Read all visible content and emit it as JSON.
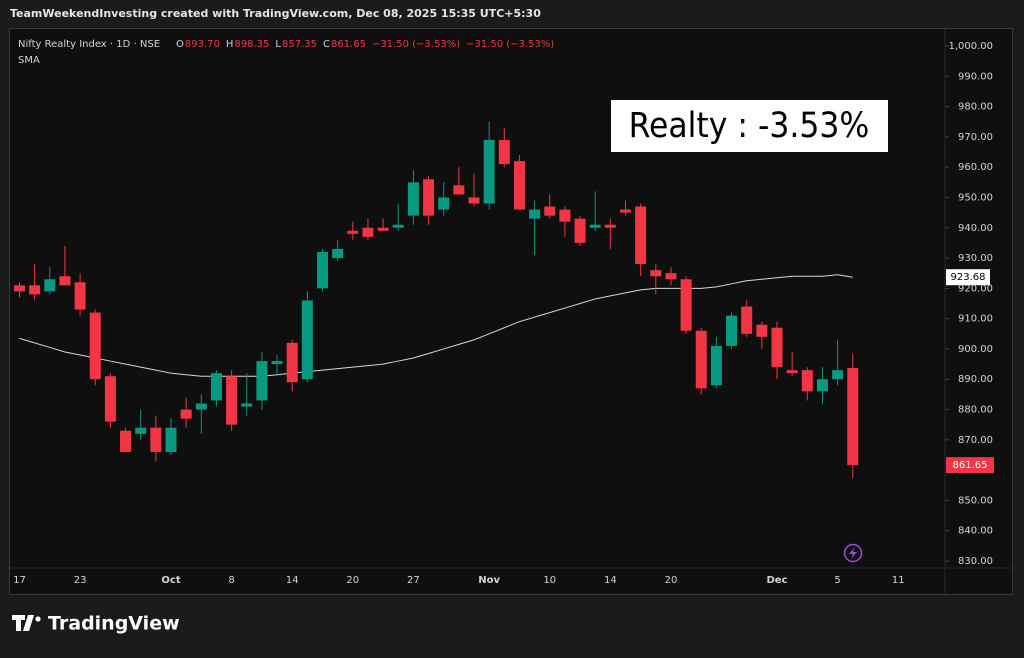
{
  "header": {
    "text": "TeamWeekendInvesting created with TradingView.com, Dec 08, 2025 15:35 UTC+5:30"
  },
  "brand": "TradingView",
  "chart_data": {
    "type": "candlestick",
    "symbol": "Nifty Realty Index · 1D · NSE",
    "ohlc_legend": [
      {
        "label": "O",
        "value": "893.70"
      },
      {
        "label": "H",
        "value": "898.35"
      },
      {
        "label": "L",
        "value": "857.35"
      },
      {
        "label": "C",
        "value": "861.65"
      }
    ],
    "change_texts": [
      "−31.50 (−3.53%)",
      "−31.50 (−3.53%)"
    ],
    "indicator": "SMA",
    "annotation": "Realty : -3.53%",
    "up_color": "#089981",
    "down_color": "#f23645",
    "sma_color": "#d8d8d8",
    "categories": [
      "17",
      null,
      null,
      null,
      "23",
      null,
      null,
      null,
      null,
      null,
      "Oct",
      null,
      null,
      null,
      "8",
      null,
      null,
      null,
      "14",
      null,
      null,
      null,
      "20",
      null,
      null,
      null,
      "27",
      null,
      null,
      null,
      null,
      "Nov",
      null,
      null,
      null,
      "10",
      null,
      null,
      null,
      "14",
      null,
      null,
      null,
      "20",
      null,
      null,
      null,
      null,
      null,
      null,
      "Dec",
      null,
      null,
      null,
      "5",
      null,
      null,
      null,
      "11"
    ],
    "open": [
      921,
      921,
      919,
      924,
      922,
      912,
      891,
      873,
      872,
      874,
      866,
      880,
      880,
      883,
      891,
      881,
      883,
      895,
      902,
      890,
      920,
      930,
      939,
      940,
      940,
      940,
      944,
      956,
      946,
      954,
      950,
      948,
      969,
      962,
      943,
      947,
      946,
      943,
      940,
      941,
      946,
      947,
      926,
      925,
      923,
      906,
      888,
      901,
      914,
      908,
      907,
      893,
      893,
      886,
      890,
      893.7,
      null,
      null,
      null
    ],
    "high": [
      922,
      928,
      927,
      934,
      925,
      913,
      892,
      874,
      880,
      878,
      877,
      884,
      885,
      893,
      893,
      892,
      899,
      898,
      903,
      919,
      933,
      936,
      942,
      943,
      943,
      948,
      959,
      957,
      955,
      960,
      958,
      975,
      973,
      964,
      949,
      951,
      947,
      944,
      952,
      943,
      949,
      948,
      928,
      927,
      924,
      907,
      904,
      912,
      916,
      909,
      909,
      899,
      894,
      894,
      903,
      898.35,
      null,
      null,
      null
    ],
    "low": [
      917,
      916,
      918,
      921,
      911,
      888,
      874,
      866,
      870,
      863,
      865,
      874,
      872,
      881,
      873,
      878,
      880,
      891,
      886,
      889,
      919,
      929,
      936,
      936,
      939,
      939,
      941,
      941,
      944,
      951,
      947,
      946,
      960,
      946,
      931,
      943,
      937,
      934,
      939,
      933,
      944,
      924,
      918,
      921,
      905,
      885,
      887,
      900,
      904,
      900,
      890,
      891,
      883,
      882,
      888,
      857.35,
      null,
      null,
      null
    ],
    "close": [
      919,
      918,
      923,
      921,
      913,
      890,
      876,
      866,
      874,
      866,
      874,
      877,
      882,
      892,
      875,
      882,
      896,
      896,
      889,
      916,
      932,
      933,
      938,
      937,
      939,
      941,
      955,
      944,
      950,
      951,
      948,
      969,
      961,
      946,
      946,
      944,
      942,
      935,
      941,
      940,
      945,
      928,
      924,
      923,
      906,
      887,
      901,
      911,
      905,
      904,
      894,
      892,
      886,
      890,
      893,
      861.65,
      null,
      null,
      null
    ],
    "sma": [
      903.5,
      902,
      900.5,
      899,
      898,
      897,
      896,
      895,
      894,
      893,
      892,
      891.5,
      891,
      891,
      891,
      891,
      891,
      891.5,
      892,
      892.5,
      893,
      893.5,
      894,
      894.5,
      895,
      896,
      897,
      898.5,
      900,
      901.5,
      903,
      905,
      907,
      909,
      910.5,
      912,
      913.5,
      915,
      916.5,
      917.5,
      918.5,
      919.5,
      920,
      920,
      920,
      920,
      920.5,
      921.5,
      922.5,
      923,
      923.5,
      924,
      924,
      924,
      924.5,
      923.68,
      null,
      null,
      null
    ],
    "ylim": [
      827.7,
      1005.6
    ],
    "yticks": [
      {
        "value": 1000,
        "label": "1,000.00"
      },
      {
        "value": 990,
        "label": "990.00"
      },
      {
        "value": 980,
        "label": "980.00"
      },
      {
        "value": 970,
        "label": "970.00"
      },
      {
        "value": 960,
        "label": "960.00"
      },
      {
        "value": 950,
        "label": "950.00"
      },
      {
        "value": 940,
        "label": "940.00"
      },
      {
        "value": 930,
        "label": "930.00"
      },
      {
        "value": 920,
        "label": "920.00"
      },
      {
        "value": 910,
        "label": "910.00"
      },
      {
        "value": 900,
        "label": "900.00"
      },
      {
        "value": 890,
        "label": "890.00"
      },
      {
        "value": 880,
        "label": "880.00"
      },
      {
        "value": 870,
        "label": "870.00"
      },
      {
        "value": 860,
        "label": "860.00"
      },
      {
        "value": 850,
        "label": "850.00"
      },
      {
        "value": 840,
        "label": "840.00"
      },
      {
        "value": 830,
        "label": "830.00"
      }
    ]
  }
}
